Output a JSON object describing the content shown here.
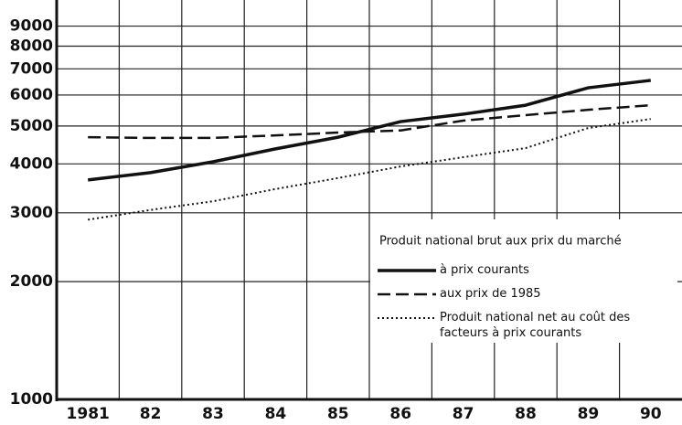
{
  "chart_data": {
    "type": "line",
    "categories": [
      "1981",
      "82",
      "83",
      "84",
      "85",
      "86",
      "87",
      "88",
      "89",
      "90"
    ],
    "log_scale": true,
    "grid": true,
    "ylim": [
      1000,
      10000
    ],
    "yticks": [
      1000,
      2000,
      3000,
      4000,
      5000,
      6000,
      7000,
      8000,
      9000
    ],
    "legend_title": "Produit national brut aux prix du marché",
    "legend_position": "lower right",
    "series": [
      {
        "name": "à prix courants",
        "color": "#111111",
        "style": "solid",
        "values": [
          3640,
          3800,
          4050,
          4370,
          4680,
          5130,
          5360,
          5650,
          6260,
          6540
        ]
      },
      {
        "name": "aux prix de 1985",
        "color": "#111111",
        "style": "dashed",
        "values": [
          4680,
          4660,
          4660,
          4730,
          4810,
          4870,
          5160,
          5330,
          5500,
          5650
        ]
      },
      {
        "name": "Produit national net au coût des facteurs à prix courants",
        "color": "#111111",
        "style": "dotted",
        "values": [
          2880,
          3050,
          3210,
          3450,
          3680,
          3940,
          4160,
          4390,
          4940,
          5210
        ]
      }
    ]
  }
}
